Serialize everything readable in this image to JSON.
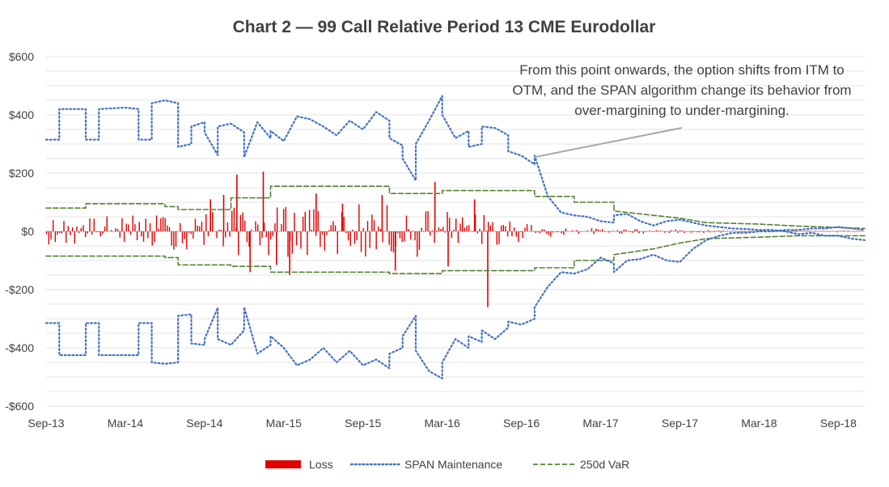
{
  "chart_data": {
    "type": "line",
    "title": "Chart 2 — 99 Call Relative Period 13 CME Eurodollar",
    "xlabel": "",
    "ylabel": "",
    "ylim": [
      -600,
      600
    ],
    "y_ticks": [
      600,
      400,
      200,
      0,
      -200,
      -400,
      -600
    ],
    "y_tick_labels": [
      "$600",
      "$400",
      "$200",
      "$0",
      "-$200",
      "-$400",
      "-$600"
    ],
    "x_range": [
      "2013-09",
      "2018-11"
    ],
    "x_ticks": [
      "2013-09",
      "2014-03",
      "2014-09",
      "2015-03",
      "2015-09",
      "2016-03",
      "2016-09",
      "2017-03",
      "2017-09",
      "2018-03",
      "2018-09"
    ],
    "x_tick_labels": [
      "Sep-13",
      "Mar-14",
      "Sep-14",
      "Mar-15",
      "Sep-15",
      "Mar-16",
      "Sep-16",
      "Mar-17",
      "Sep-17",
      "Mar-18",
      "Sep-18"
    ],
    "grid": "horizontal",
    "legend_position": "bottom",
    "annotation": {
      "lines": [
        "From this point onwards, the option shifts from ITM to",
        "OTM, and the SPAN algorithm change its behavior from",
        "over-margining to under-margining."
      ],
      "target": {
        "x": "2016-10",
        "y": 255
      }
    },
    "series": [
      {
        "name": "SPAN Maintenance",
        "style": "dotted",
        "color": "#4472C4",
        "upper": [
          [
            "2013-09",
            315
          ],
          [
            "2013-10",
            315
          ],
          [
            "2013-10",
            420
          ],
          [
            "2013-12",
            420
          ],
          [
            "2013-12",
            315
          ],
          [
            "2014-01",
            315
          ],
          [
            "2014-01",
            420
          ],
          [
            "2014-03",
            425
          ],
          [
            "2014-04",
            420
          ],
          [
            "2014-04",
            315
          ],
          [
            "2014-05",
            315
          ],
          [
            "2014-05",
            440
          ],
          [
            "2014-06",
            450
          ],
          [
            "2014-07",
            440
          ],
          [
            "2014-07",
            290
          ],
          [
            "2014-08",
            300
          ],
          [
            "2014-08",
            360
          ],
          [
            "2014-09",
            375
          ],
          [
            "2014-09",
            340
          ],
          [
            "2014-10",
            262
          ],
          [
            "2014-10",
            360
          ],
          [
            "2014-11",
            370
          ],
          [
            "2014-12",
            340
          ],
          [
            "2014-12",
            255
          ],
          [
            "2015-01",
            375
          ],
          [
            "2015-02",
            320
          ],
          [
            "2015-02",
            345
          ],
          [
            "2015-03",
            310
          ],
          [
            "2015-04",
            395
          ],
          [
            "2015-05",
            385
          ],
          [
            "2015-06",
            360
          ],
          [
            "2015-07",
            330
          ],
          [
            "2015-08",
            380
          ],
          [
            "2015-09",
            350
          ],
          [
            "2015-10",
            410
          ],
          [
            "2015-11",
            380
          ],
          [
            "2015-11",
            320
          ],
          [
            "2015-12",
            295
          ],
          [
            "2015-12",
            250
          ],
          [
            "2016-01",
            175
          ],
          [
            "2016-01",
            300
          ],
          [
            "2016-02",
            380
          ],
          [
            "2016-03",
            465
          ],
          [
            "2016-03",
            400
          ],
          [
            "2016-04",
            320
          ],
          [
            "2016-05",
            345
          ],
          [
            "2016-05",
            290
          ],
          [
            "2016-06",
            300
          ],
          [
            "2016-06",
            360
          ],
          [
            "2016-07",
            355
          ],
          [
            "2016-08",
            330
          ],
          [
            "2016-08",
            275
          ],
          [
            "2016-09",
            260
          ],
          [
            "2016-10",
            230
          ],
          [
            "2016-10",
            260
          ],
          [
            "2016-11",
            120
          ],
          [
            "2016-12",
            65
          ],
          [
            "2017-01",
            55
          ],
          [
            "2017-02",
            50
          ],
          [
            "2017-03",
            35
          ],
          [
            "2017-04",
            30
          ],
          [
            "2017-04",
            55
          ],
          [
            "2017-05",
            60
          ],
          [
            "2017-06",
            35
          ],
          [
            "2017-07",
            20
          ],
          [
            "2017-08",
            35
          ],
          [
            "2017-09",
            40
          ],
          [
            "2017-10",
            30
          ],
          [
            "2017-11",
            20
          ],
          [
            "2017-12",
            15
          ],
          [
            "2018-01",
            10
          ],
          [
            "2018-02",
            8
          ],
          [
            "2018-03",
            5
          ],
          [
            "2018-04",
            5
          ],
          [
            "2018-05",
            0
          ],
          [
            "2018-06",
            -10
          ],
          [
            "2018-07",
            -5
          ],
          [
            "2018-08",
            -15
          ],
          [
            "2018-09",
            -15
          ],
          [
            "2018-10",
            -25
          ],
          [
            "2018-11",
            -30
          ]
        ],
        "lower": [
          [
            "2013-09",
            -315
          ],
          [
            "2013-10",
            -315
          ],
          [
            "2013-10",
            -425
          ],
          [
            "2013-12",
            -425
          ],
          [
            "2013-12",
            -315
          ],
          [
            "2014-01",
            -315
          ],
          [
            "2014-01",
            -425
          ],
          [
            "2014-03",
            -425
          ],
          [
            "2014-04",
            -425
          ],
          [
            "2014-04",
            -315
          ],
          [
            "2014-05",
            -315
          ],
          [
            "2014-05",
            -450
          ],
          [
            "2014-06",
            -455
          ],
          [
            "2014-07",
            -450
          ],
          [
            "2014-07",
            -290
          ],
          [
            "2014-08",
            -285
          ],
          [
            "2014-08",
            -385
          ],
          [
            "2014-09",
            -390
          ],
          [
            "2014-09",
            -370
          ],
          [
            "2014-10",
            -262
          ],
          [
            "2014-10",
            -370
          ],
          [
            "2014-11",
            -390
          ],
          [
            "2014-12",
            -340
          ],
          [
            "2014-12",
            -260
          ],
          [
            "2015-01",
            -420
          ],
          [
            "2015-02",
            -390
          ],
          [
            "2015-02",
            -360
          ],
          [
            "2015-03",
            -400
          ],
          [
            "2015-04",
            -460
          ],
          [
            "2015-05",
            -440
          ],
          [
            "2015-06",
            -400
          ],
          [
            "2015-07",
            -450
          ],
          [
            "2015-08",
            -410
          ],
          [
            "2015-09",
            -460
          ],
          [
            "2015-10",
            -440
          ],
          [
            "2015-11",
            -470
          ],
          [
            "2015-11",
            -420
          ],
          [
            "2015-12",
            -400
          ],
          [
            "2015-12",
            -360
          ],
          [
            "2016-01",
            -290
          ],
          [
            "2016-01",
            -410
          ],
          [
            "2016-02",
            -480
          ],
          [
            "2016-03",
            -505
          ],
          [
            "2016-03",
            -450
          ],
          [
            "2016-04",
            -370
          ],
          [
            "2016-05",
            -400
          ],
          [
            "2016-05",
            -360
          ],
          [
            "2016-06",
            -380
          ],
          [
            "2016-06",
            -340
          ],
          [
            "2016-07",
            -370
          ],
          [
            "2016-08",
            -330
          ],
          [
            "2016-08",
            -310
          ],
          [
            "2016-09",
            -320
          ],
          [
            "2016-10",
            -300
          ],
          [
            "2016-10",
            -260
          ],
          [
            "2016-11",
            -190
          ],
          [
            "2016-12",
            -140
          ],
          [
            "2017-01",
            -145
          ],
          [
            "2017-02",
            -130
          ],
          [
            "2017-03",
            -90
          ],
          [
            "2017-04",
            -110
          ],
          [
            "2017-04",
            -140
          ],
          [
            "2017-05",
            -100
          ],
          [
            "2017-06",
            -95
          ],
          [
            "2017-07",
            -80
          ],
          [
            "2017-08",
            -100
          ],
          [
            "2017-09",
            -105
          ],
          [
            "2017-10",
            -60
          ],
          [
            "2017-11",
            -30
          ],
          [
            "2017-12",
            -15
          ],
          [
            "2018-01",
            -5
          ],
          [
            "2018-02",
            -5
          ],
          [
            "2018-03",
            0
          ],
          [
            "2018-04",
            0
          ],
          [
            "2018-05",
            5
          ],
          [
            "2018-06",
            5
          ],
          [
            "2018-07",
            10
          ],
          [
            "2018-08",
            10
          ],
          [
            "2018-09",
            15
          ],
          [
            "2018-10",
            10
          ],
          [
            "2018-11",
            5
          ]
        ]
      },
      {
        "name": "250d VaR",
        "style": "dashed",
        "color": "#548235",
        "upper": [
          [
            "2013-09",
            80
          ],
          [
            "2013-12",
            80
          ],
          [
            "2013-12",
            95
          ],
          [
            "2014-06",
            95
          ],
          [
            "2014-06",
            85
          ],
          [
            "2014-07",
            85
          ],
          [
            "2014-07",
            75
          ],
          [
            "2014-11",
            75
          ],
          [
            "2014-11",
            115
          ],
          [
            "2015-02",
            115
          ],
          [
            "2015-02",
            155
          ],
          [
            "2015-11",
            155
          ],
          [
            "2015-11",
            130
          ],
          [
            "2016-03",
            130
          ],
          [
            "2016-03",
            140
          ],
          [
            "2016-10",
            140
          ],
          [
            "2016-10",
            120
          ],
          [
            "2017-01",
            120
          ],
          [
            "2017-01",
            100
          ],
          [
            "2017-04",
            100
          ],
          [
            "2017-04",
            70
          ],
          [
            "2017-07",
            55
          ],
          [
            "2017-09",
            45
          ],
          [
            "2017-11",
            30
          ],
          [
            "2018-03",
            25
          ],
          [
            "2018-06",
            18
          ],
          [
            "2018-11",
            10
          ]
        ],
        "lower": [
          [
            "2013-09",
            -85
          ],
          [
            "2014-06",
            -85
          ],
          [
            "2014-06",
            -90
          ],
          [
            "2014-07",
            -90
          ],
          [
            "2014-07",
            -115
          ],
          [
            "2014-11",
            -115
          ],
          [
            "2014-11",
            -120
          ],
          [
            "2015-02",
            -120
          ],
          [
            "2015-02",
            -140
          ],
          [
            "2015-11",
            -140
          ],
          [
            "2015-11",
            -145
          ],
          [
            "2016-03",
            -145
          ],
          [
            "2016-03",
            -135
          ],
          [
            "2016-10",
            -135
          ],
          [
            "2016-10",
            -125
          ],
          [
            "2017-01",
            -125
          ],
          [
            "2017-01",
            -100
          ],
          [
            "2017-04",
            -100
          ],
          [
            "2017-04",
            -80
          ],
          [
            "2017-07",
            -60
          ],
          [
            "2017-09",
            -40
          ],
          [
            "2017-11",
            -25
          ],
          [
            "2018-03",
            -20
          ],
          [
            "2018-06",
            -15
          ],
          [
            "2018-11",
            -15
          ]
        ]
      },
      {
        "name": "Loss",
        "style": "bar",
        "color": "#E00000",
        "amplitude": [
          [
            "2013-09",
            45
          ],
          [
            "2014-01",
            55
          ],
          [
            "2014-06",
            60
          ],
          [
            "2014-10",
            80
          ],
          [
            "2015-02",
            90
          ],
          [
            "2015-06",
            85
          ],
          [
            "2015-09",
            95
          ],
          [
            "2016-01",
            90
          ],
          [
            "2016-04",
            70
          ],
          [
            "2016-07",
            55
          ],
          [
            "2016-10",
            25
          ],
          [
            "2017-01",
            12
          ],
          [
            "2017-06",
            8
          ],
          [
            "2018-01",
            4
          ],
          [
            "2018-11",
            3
          ]
        ],
        "spikes": [
          [
            "2014-09",
            110
          ],
          [
            "2014-10",
            125
          ],
          [
            "2014-11",
            195
          ],
          [
            "2014-12",
            -140
          ],
          [
            "2015-01",
            205
          ],
          [
            "2015-02",
            -115
          ],
          [
            "2015-03",
            -150
          ],
          [
            "2015-05",
            130
          ],
          [
            "2015-07",
            95
          ],
          [
            "2015-10",
            125
          ],
          [
            "2015-11",
            -135
          ],
          [
            "2016-02",
            170
          ],
          [
            "2016-03",
            -120
          ],
          [
            "2016-05",
            110
          ],
          [
            "2016-06",
            -260
          ]
        ]
      }
    ]
  }
}
